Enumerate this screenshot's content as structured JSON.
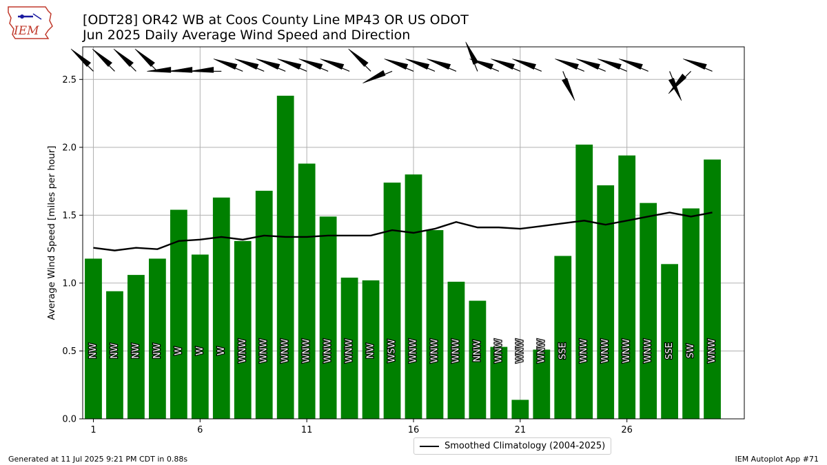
{
  "header": {
    "title_line1": "[ODT28] OR42 WB at Coos County Line MP43 OR US ODOT",
    "title_line2": "Jun 2025 Daily Average Wind Speed and Direction",
    "logo_text": "IEM"
  },
  "footer": {
    "left": "Generated at 11 Jul 2025 9:21 PM CDT in 0.88s",
    "right": "IEM Autoplot App #71"
  },
  "legend": {
    "climatology_label": "Smoothed Climatology (2004-2025)"
  },
  "colors": {
    "bar": "#008000",
    "climatology_line": "#000000",
    "grid": "#b0b0b0"
  },
  "chart_data": {
    "type": "bar",
    "xlabel": "",
    "ylabel": "Average Wind Speed [miles per hour]",
    "xlim": [
      0.5,
      31.5
    ],
    "ylim": [
      0,
      2.74
    ],
    "grid": true,
    "legend_position": "bottom-center",
    "x_ticks": [
      1,
      6,
      11,
      16,
      21,
      26
    ],
    "y_ticks": [
      0.0,
      0.5,
      1.0,
      1.5,
      2.0,
      2.5
    ],
    "days": [
      1,
      2,
      3,
      4,
      5,
      6,
      7,
      8,
      9,
      10,
      11,
      12,
      13,
      14,
      15,
      16,
      17,
      18,
      19,
      20,
      21,
      22,
      23,
      24,
      25,
      26,
      27,
      28,
      29,
      30
    ],
    "speed": [
      1.18,
      0.94,
      1.06,
      1.18,
      1.54,
      1.21,
      1.63,
      1.31,
      1.68,
      2.38,
      1.88,
      1.49,
      1.04,
      1.02,
      1.74,
      1.8,
      1.39,
      1.01,
      0.87,
      0.53,
      0.14,
      0.51,
      1.2,
      2.02,
      1.72,
      1.94,
      1.59,
      1.14,
      1.55,
      1.91
    ],
    "direction_label": [
      "NW",
      "NW",
      "NW",
      "NW",
      "W",
      "W",
      "W",
      "WNW",
      "WNW",
      "WNW",
      "WNW",
      "WNW",
      "WNW",
      "NW",
      "WSW",
      "WNW",
      "WNW",
      "WNW",
      "NNW",
      "WNW",
      "WNW",
      "WNW",
      "SSE",
      "WNW",
      "WNW",
      "WNW",
      "WNW",
      "SSE",
      "SW",
      "WNW"
    ],
    "direction_deg": [
      315,
      315,
      315,
      315,
      270,
      270,
      270,
      293,
      293,
      293,
      293,
      293,
      293,
      315,
      248,
      293,
      293,
      293,
      338,
      293,
      293,
      293,
      158,
      293,
      293,
      293,
      293,
      158,
      225,
      293
    ],
    "series": [
      {
        "name": "Smoothed Climatology (2004-2025)",
        "values": [
          1.26,
          1.24,
          1.26,
          1.25,
          1.31,
          1.32,
          1.34,
          1.32,
          1.35,
          1.34,
          1.34,
          1.35,
          1.35,
          1.35,
          1.39,
          1.37,
          1.4,
          1.45,
          1.41,
          1.41,
          1.4,
          1.42,
          1.44,
          1.46,
          1.43,
          1.46,
          1.49,
          1.52,
          1.49,
          1.52
        ]
      }
    ]
  }
}
